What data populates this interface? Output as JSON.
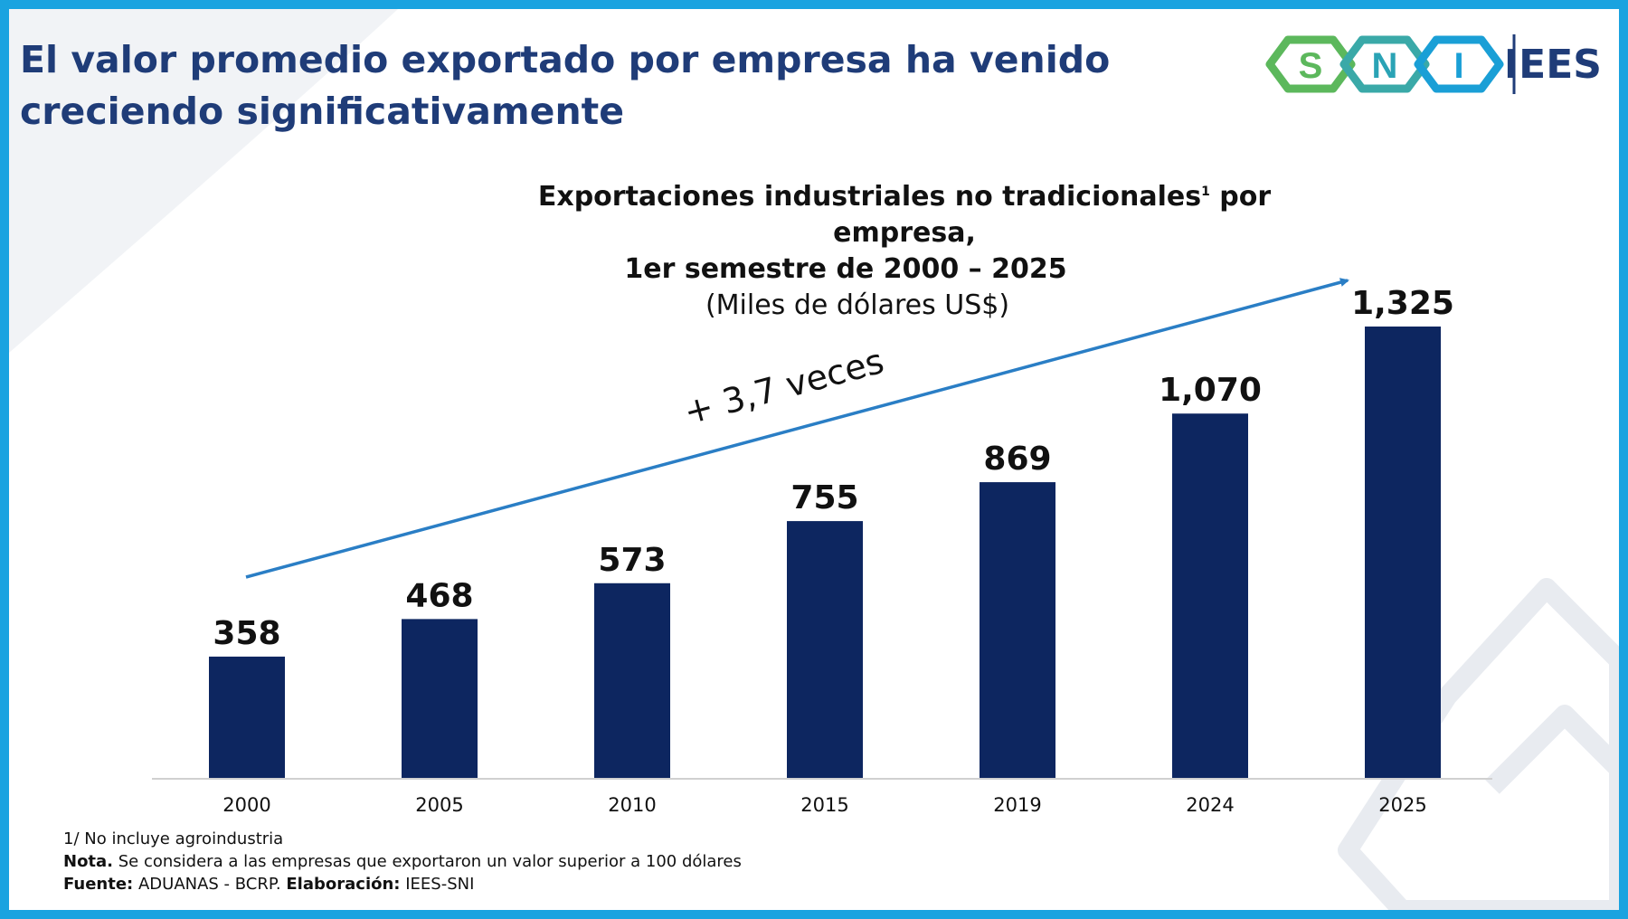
{
  "slide": {
    "title": "El valor promedio exportado por empresa ha venido creciendo significativamente"
  },
  "logo": {
    "letters": [
      "S",
      "N",
      "I"
    ],
    "org": "IEES",
    "colors": {
      "green": "#5cb85c",
      "blue": "#1a9fd6",
      "text": "#1f3c78"
    }
  },
  "chart_data": {
    "type": "bar",
    "title_line1": "Exportaciones industriales no tradicionales",
    "title_sup": "1",
    "title_line1_end": " por empresa,",
    "title_line2": "1er semestre de 2000 – 2025",
    "subtitle": "(Miles de dólares US$)",
    "categories": [
      "2000",
      "2005",
      "2010",
      "2015",
      "2019",
      "2024",
      "2025"
    ],
    "values": [
      358,
      468,
      573,
      755,
      869,
      1070,
      1325
    ],
    "value_labels": [
      "358",
      "468",
      "573",
      "755",
      "869",
      "1,070",
      "1,325"
    ],
    "ylim": [
      0,
      1325
    ],
    "bar_color": "#0d2660",
    "trend_annotation": "+ 3,7 veces",
    "trend_color": "#2a7ec5",
    "grid": false
  },
  "notes": {
    "footnote": "1/ No incluye agroindustria",
    "nota_label": "Nota.",
    "nota_text": " Se considera a las empresas que exportaron un valor superior a 100 dólares",
    "fuente_label": "Fuente:",
    "fuente_text": " ADUANAS - BCRP. ",
    "elaboracion_label": "Elaboración:",
    "elaboracion_text": " IEES-SNI"
  }
}
